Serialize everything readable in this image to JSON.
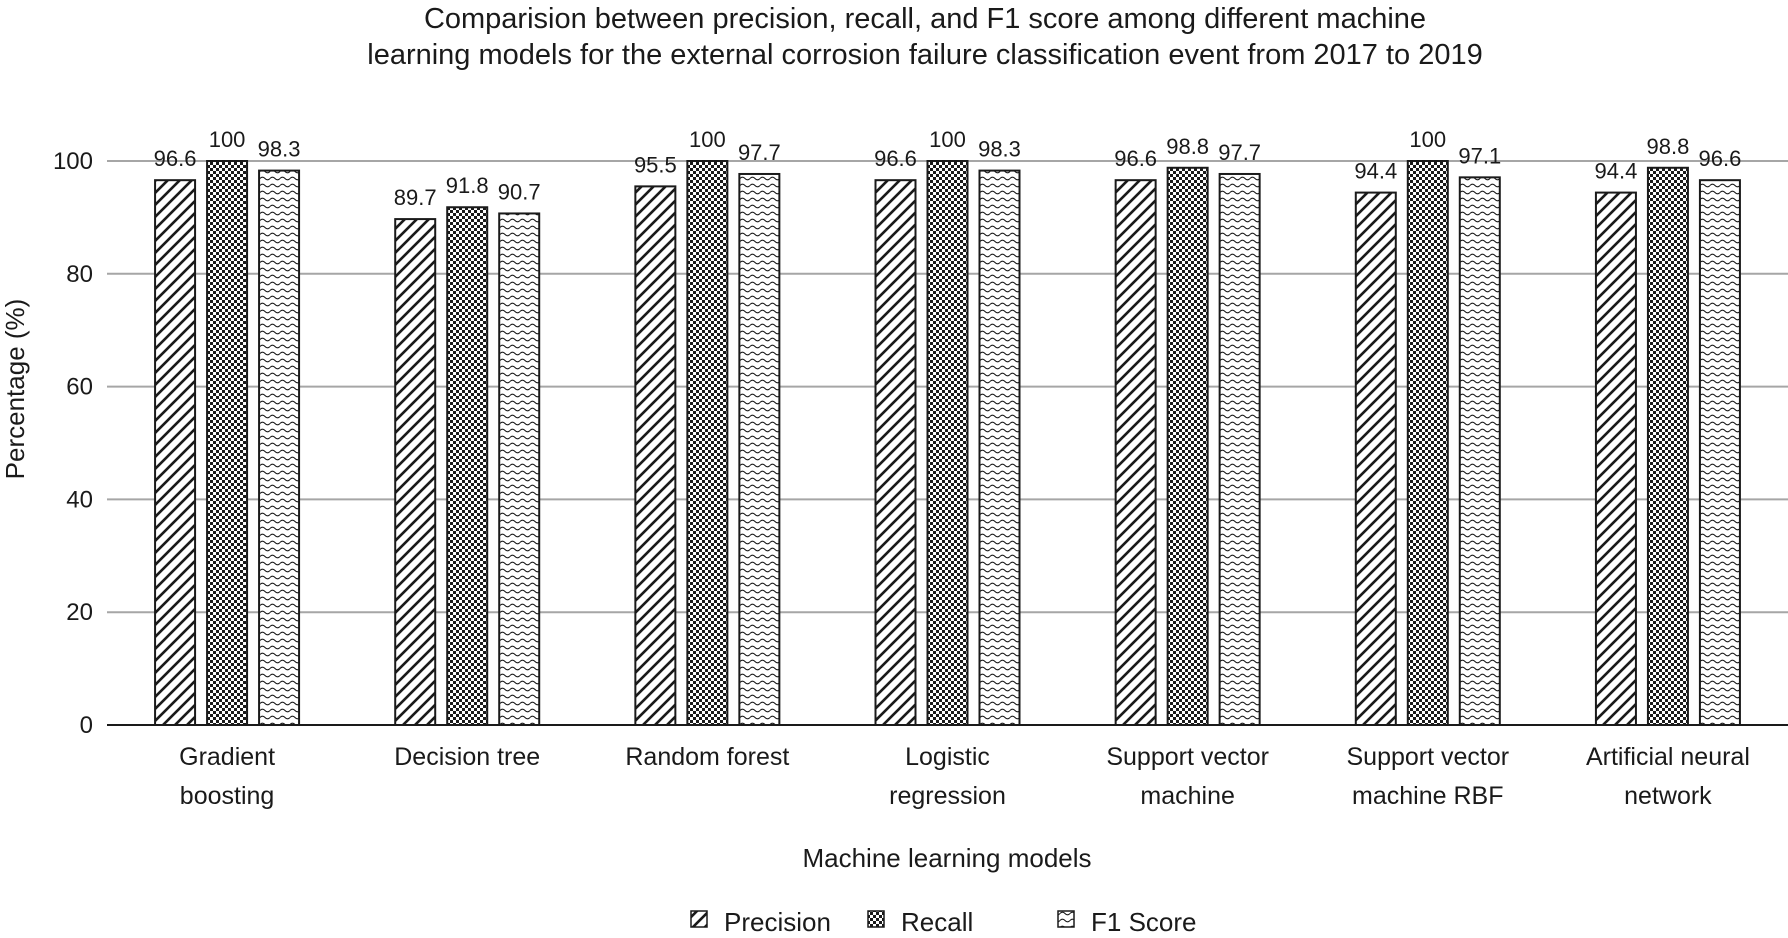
{
  "chart_data": {
    "type": "bar",
    "title_lines": [
      "Comparision between precision, recall, and F1 score among different machine",
      "learning models for the external corrosion failure classification event from 2017 to 2019"
    ],
    "xlabel": "Machine learning models",
    "ylabel": "Percentage (%)",
    "ylim": [
      0,
      100
    ],
    "yticks": [
      0,
      20,
      40,
      60,
      80,
      100
    ],
    "grid": true,
    "legend_position": "bottom",
    "categories": [
      [
        "Gradient",
        "boosting"
      ],
      [
        "Decision tree"
      ],
      [
        "Random forest"
      ],
      [
        "Logistic",
        "regression"
      ],
      [
        "Support vector",
        "machine"
      ],
      [
        "Support vector",
        "machine RBF"
      ],
      [
        "Artificial neural",
        "network"
      ]
    ],
    "series": [
      {
        "name": "Precision",
        "pattern": "diagonal-hatch",
        "values": [
          96.6,
          89.7,
          95.5,
          96.6,
          96.6,
          94.4,
          94.4
        ]
      },
      {
        "name": "Recall",
        "pattern": "checkerboard",
        "values": [
          100,
          91.8,
          100,
          100,
          98.8,
          100,
          98.8
        ]
      },
      {
        "name": "F1 Score",
        "pattern": "wavy",
        "values": [
          98.3,
          90.7,
          97.7,
          98.3,
          97.7,
          97.1,
          96.6
        ]
      }
    ],
    "colors": {
      "bar_stroke": "#1a1a1a",
      "grid": "#a6a6a6",
      "axis": "#1a1a1a"
    }
  }
}
